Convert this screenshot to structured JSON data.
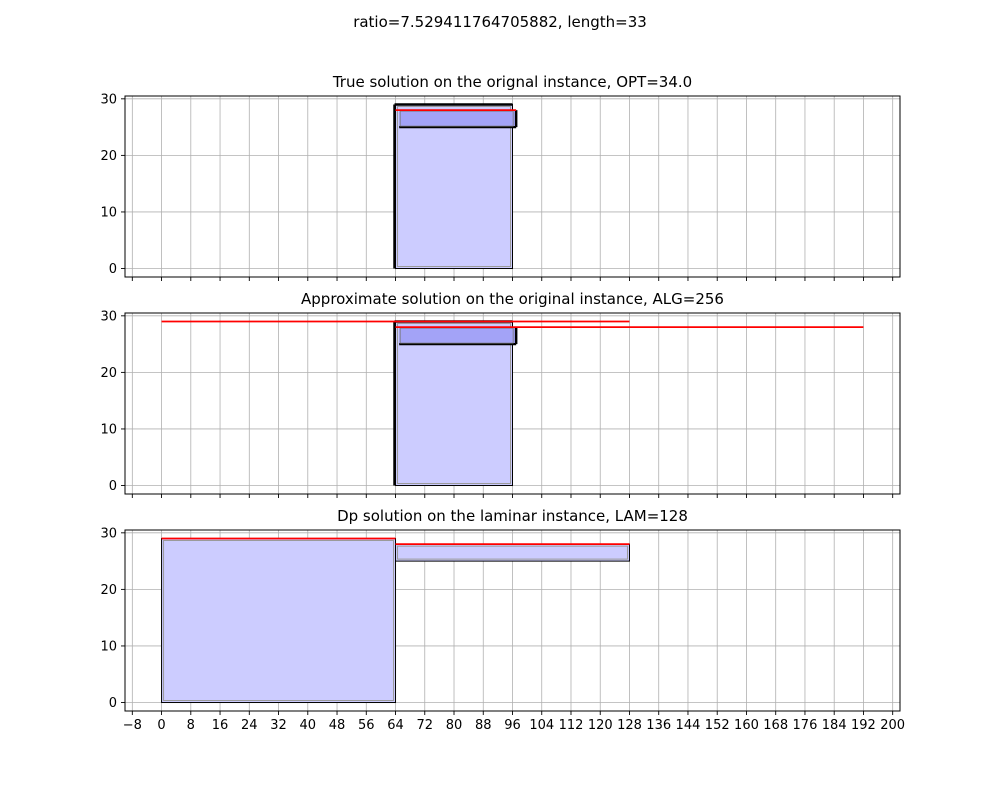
{
  "suptitle": "ratio=7.529411764705882, length=33",
  "colors": {
    "rect_fill": "#ccccff",
    "rect_fill_dark": "#a3a3f7",
    "rect_edge": "#000000",
    "red_line": "#ff0000",
    "grid": "#b0b0b0"
  },
  "chart_data": [
    {
      "type": "rectangles",
      "title": "True solution on the orignal instance, OPT=34.0",
      "xlim": [
        -10,
        202
      ],
      "ylim": [
        -1.5,
        30.5
      ],
      "show_xtick_labels": false,
      "rectangles": [
        {
          "x0": 64,
          "x1": 96,
          "y0": 0,
          "y1": 29,
          "style": "light"
        },
        {
          "x0": 64,
          "x1": 96,
          "y0": 0,
          "y1": 29,
          "style": "thick-left"
        },
        {
          "x0": 65,
          "x1": 97,
          "y0": 25,
          "y1": 28,
          "style": "dark"
        }
      ],
      "lines": [
        {
          "x0": 64,
          "x1": 97,
          "y": 28
        }
      ]
    },
    {
      "type": "rectangles",
      "title": "Approximate solution on the original instance, ALG=256",
      "xlim": [
        -10,
        202
      ],
      "ylim": [
        -1.5,
        30.5
      ],
      "show_xtick_labels": false,
      "rectangles": [
        {
          "x0": 64,
          "x1": 96,
          "y0": 0,
          "y1": 29,
          "style": "light"
        },
        {
          "x0": 64,
          "x1": 96,
          "y0": 0,
          "y1": 29,
          "style": "thick-left"
        },
        {
          "x0": 65,
          "x1": 97,
          "y0": 25,
          "y1": 28,
          "style": "dark"
        }
      ],
      "lines": [
        {
          "x0": 0,
          "x1": 128,
          "y": 29
        },
        {
          "x0": 64,
          "x1": 192,
          "y": 28
        }
      ]
    },
    {
      "type": "rectangles",
      "title": "Dp solution on the laminar instance, LAM=128",
      "xlim": [
        -10,
        202
      ],
      "ylim": [
        -1.5,
        30.5
      ],
      "show_xtick_labels": true,
      "rectangles": [
        {
          "x0": 0,
          "x1": 64,
          "y0": 0,
          "y1": 29,
          "style": "light"
        },
        {
          "x0": 64,
          "x1": 128,
          "y0": 25,
          "y1": 28,
          "style": "light"
        }
      ],
      "lines": [
        {
          "x0": 0,
          "x1": 64,
          "y": 29
        },
        {
          "x0": 64,
          "x1": 128,
          "y": 28
        }
      ]
    }
  ],
  "xticks": [
    -8,
    0,
    8,
    16,
    24,
    32,
    40,
    48,
    56,
    64,
    72,
    80,
    88,
    96,
    104,
    112,
    120,
    128,
    136,
    144,
    152,
    160,
    168,
    176,
    184,
    192,
    200
  ],
  "yticks": [
    0,
    10,
    20,
    30
  ]
}
